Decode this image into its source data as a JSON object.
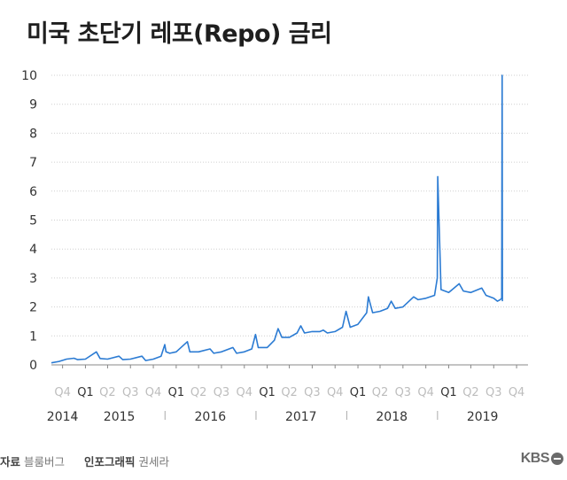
{
  "header": {
    "title": "미국 초단기 레포(Repo) 금리"
  },
  "footer": {
    "source_label": "자료",
    "source_value": "블룸버그",
    "graphic_label": "인포그래픽",
    "graphic_value": "권세라",
    "logo_text": "KBS"
  },
  "colors": {
    "line": "#2b7bd3",
    "grid": "#cfcfcf",
    "axis": "#888888",
    "quarter_muted": "#bdbdbd",
    "quarter_strong": "#333333"
  },
  "chart_data": {
    "type": "line",
    "title": "미국 초단기 레포(Repo) 금리",
    "ylim": [
      0,
      10
    ],
    "yticks": [
      0,
      1,
      2,
      3,
      4,
      5,
      6,
      7,
      8,
      9,
      10
    ],
    "xlim": [
      "2014-10-01",
      "2019-12-31"
    ],
    "quarter_ticks": [
      {
        "label": "Q4",
        "date": "2014-11-15",
        "strong": false
      },
      {
        "label": "Q1",
        "date": "2015-02-15",
        "strong": true
      },
      {
        "label": "Q2",
        "date": "2015-05-15",
        "strong": false
      },
      {
        "label": "Q3",
        "date": "2015-08-15",
        "strong": false
      },
      {
        "label": "Q4",
        "date": "2015-11-15",
        "strong": false
      },
      {
        "label": "Q1",
        "date": "2016-02-15",
        "strong": true
      },
      {
        "label": "Q2",
        "date": "2016-05-15",
        "strong": false
      },
      {
        "label": "Q3",
        "date": "2016-08-15",
        "strong": false
      },
      {
        "label": "Q4",
        "date": "2016-11-15",
        "strong": false
      },
      {
        "label": "Q1",
        "date": "2017-02-15",
        "strong": true
      },
      {
        "label": "Q2",
        "date": "2017-05-15",
        "strong": false
      },
      {
        "label": "Q3",
        "date": "2017-08-15",
        "strong": false
      },
      {
        "label": "Q4",
        "date": "2017-11-15",
        "strong": false
      },
      {
        "label": "Q1",
        "date": "2018-02-15",
        "strong": true
      },
      {
        "label": "Q2",
        "date": "2018-05-15",
        "strong": false
      },
      {
        "label": "Q3",
        "date": "2018-08-15",
        "strong": false
      },
      {
        "label": "Q4",
        "date": "2018-11-15",
        "strong": false
      },
      {
        "label": "Q1",
        "date": "2019-02-15",
        "strong": true
      },
      {
        "label": "Q2",
        "date": "2019-05-15",
        "strong": false
      },
      {
        "label": "Q3",
        "date": "2019-08-15",
        "strong": false
      },
      {
        "label": "Q4",
        "date": "2019-11-15",
        "strong": false
      }
    ],
    "year_labels": [
      {
        "label": "2014",
        "date": "2014-11-15"
      },
      {
        "label": "2015",
        "date": "2015-07-01"
      },
      {
        "label": "2016",
        "date": "2016-07-01"
      },
      {
        "label": "2017",
        "date": "2017-07-01"
      },
      {
        "label": "2018",
        "date": "2018-07-01"
      },
      {
        "label": "2019",
        "date": "2019-07-01"
      }
    ],
    "year_separators": [
      "2015-01-01",
      "2016-01-01",
      "2017-01-01",
      "2018-01-01",
      "2019-01-01"
    ],
    "series": [
      {
        "x": [
          "2014-10-01",
          "2014-11-01",
          "2014-12-01",
          "2014-12-31",
          "2015-01-15",
          "2015-02-15",
          "2015-03-31",
          "2015-04-15",
          "2015-05-15",
          "2015-06-30",
          "2015-07-15",
          "2015-08-15",
          "2015-09-30",
          "2015-10-15",
          "2015-11-15",
          "2015-12-16",
          "2015-12-31",
          "2016-01-05",
          "2016-01-20",
          "2016-02-15",
          "2016-03-31",
          "2016-04-10",
          "2016-05-15",
          "2016-06-30",
          "2016-07-15",
          "2016-08-15",
          "2016-09-30",
          "2016-10-15",
          "2016-11-15",
          "2016-12-15",
          "2016-12-30",
          "2017-01-10",
          "2017-02-15",
          "2017-03-16",
          "2017-03-31",
          "2017-04-15",
          "2017-05-15",
          "2017-06-15",
          "2017-06-30",
          "2017-07-15",
          "2017-08-15",
          "2017-09-15",
          "2017-09-29",
          "2017-10-15",
          "2017-11-15",
          "2017-12-15",
          "2017-12-29",
          "2018-01-15",
          "2018-02-15",
          "2018-03-22",
          "2018-03-29",
          "2018-04-15",
          "2018-05-15",
          "2018-06-14",
          "2018-06-29",
          "2018-07-15",
          "2018-08-15",
          "2018-09-27",
          "2018-10-15",
          "2018-11-15",
          "2018-12-20",
          "2018-12-31",
          "2019-01-02",
          "2019-01-15",
          "2019-02-15",
          "2019-03-29",
          "2019-04-15",
          "2019-05-15",
          "2019-06-28",
          "2019-07-15",
          "2019-08-15",
          "2019-08-30",
          "2019-09-10",
          "2019-09-16",
          "2019-09-17",
          "2019-09-18",
          "2019-09-19"
        ],
        "values": [
          0.07,
          0.12,
          0.2,
          0.23,
          0.18,
          0.2,
          0.45,
          0.22,
          0.2,
          0.3,
          0.18,
          0.2,
          0.3,
          0.15,
          0.2,
          0.3,
          0.7,
          0.45,
          0.4,
          0.45,
          0.8,
          0.45,
          0.45,
          0.55,
          0.4,
          0.45,
          0.6,
          0.4,
          0.45,
          0.55,
          1.05,
          0.6,
          0.6,
          0.85,
          1.25,
          0.95,
          0.95,
          1.1,
          1.35,
          1.1,
          1.15,
          1.15,
          1.2,
          1.1,
          1.15,
          1.3,
          1.85,
          1.3,
          1.4,
          1.8,
          2.35,
          1.8,
          1.85,
          1.95,
          2.2,
          1.95,
          2.0,
          2.35,
          2.25,
          2.3,
          2.4,
          3.0,
          6.5,
          2.6,
          2.5,
          2.8,
          2.55,
          2.5,
          2.65,
          2.4,
          2.3,
          2.2,
          2.25,
          2.3,
          5.6,
          10.0,
          2.2
        ]
      }
    ]
  }
}
